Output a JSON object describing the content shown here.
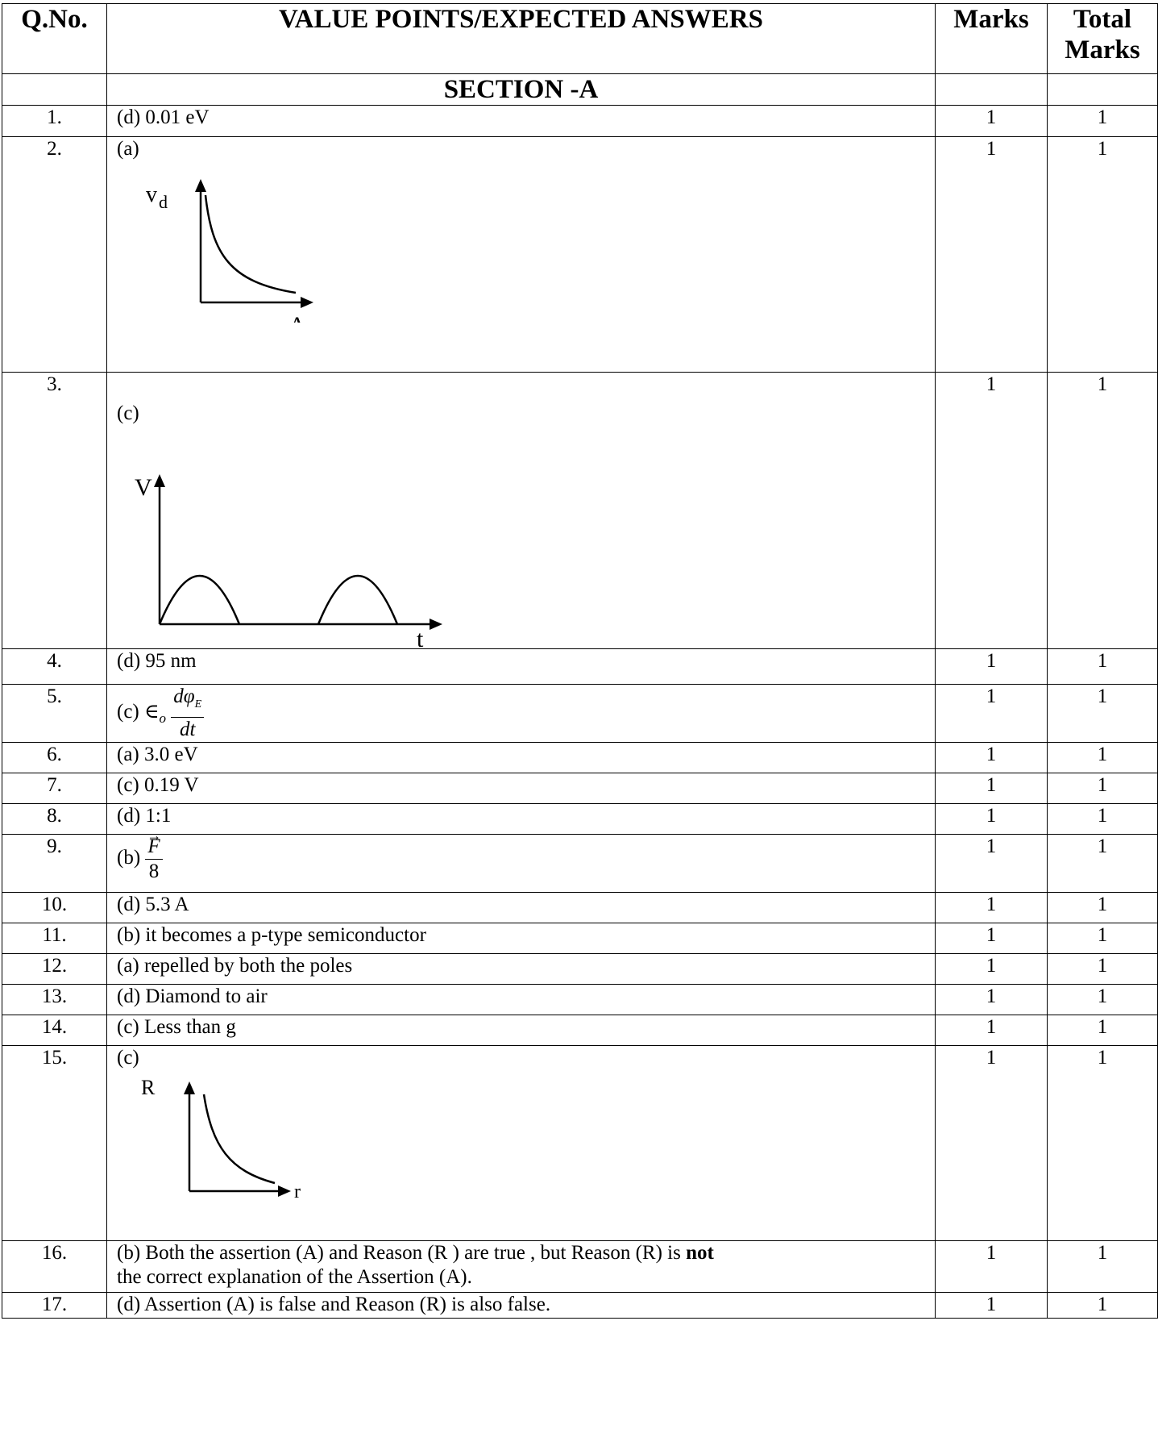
{
  "header": {
    "qno": "Q.No.",
    "answers": "VALUE POINTS/EXPECTED ANSWERS",
    "marks": "Marks",
    "total_marks": "Total Marks"
  },
  "section_title": "SECTION -A",
  "rows": [
    {
      "q": "1.",
      "answer": "(d) 0.01 eV",
      "marks": "1",
      "total": "1"
    },
    {
      "q": "2.",
      "answer": "(a)",
      "marks": "1",
      "total": "1",
      "graph": {
        "ylabel": "v",
        "ysub": "d",
        "xlabel": "A"
      }
    },
    {
      "q": "3.",
      "answer": "(c)",
      "marks": "1",
      "total": "1",
      "graph": {
        "ylabel": "V",
        "xlabel": "t"
      }
    },
    {
      "q": "4.",
      "answer": "(d) 95 nm",
      "marks": "1",
      "total": "1"
    },
    {
      "q": "5.",
      "answer": "(c) ∈",
      "answer_sub": "o",
      "frac_num": "dφ",
      "frac_num_sub": "E",
      "frac_den": "dt",
      "marks": "1",
      "total": "1"
    },
    {
      "q": "6.",
      "answer": "(a) 3.0 eV",
      "marks": "1",
      "total": "1"
    },
    {
      "q": "7.",
      "answer": "(c) 0.19 V",
      "marks": "1",
      "total": "1"
    },
    {
      "q": "8.",
      "answer": "(d) 1:1",
      "marks": "1",
      "total": "1"
    },
    {
      "q": "9.",
      "answer": "(b)",
      "frac_num": "F",
      "frac_den": "8",
      "marks": "1",
      "total": "1"
    },
    {
      "q": "10.",
      "answer": "(d) 5.3 A",
      "marks": "1",
      "total": "1"
    },
    {
      "q": "11.",
      "answer": "(b) it becomes a p-type semiconductor",
      "marks": "1",
      "total": "1"
    },
    {
      "q": "12.",
      "answer": "(a) repelled by both the poles",
      "marks": "1",
      "total": "1"
    },
    {
      "q": "13.",
      "answer": "(d) Diamond to air",
      "marks": "1",
      "total": "1"
    },
    {
      "q": "14.",
      "answer": "(c) Less than g",
      "marks": "1",
      "total": "1"
    },
    {
      "q": "15.",
      "answer": "(c)",
      "marks": "1",
      "total": "1",
      "graph": {
        "ylabel": "R",
        "xlabel": "r"
      }
    },
    {
      "q": "16.",
      "answer_part1": "(b) Both the assertion (A) and Reason (R ) are true , but Reason (R) is ",
      "answer_bold": "not",
      "answer_part2": "the correct explanation of the Assertion (A).",
      "marks": "1",
      "total": "1"
    },
    {
      "q": "17.",
      "answer": "(d) Assertion (A) is false and Reason (R) is also false.",
      "marks": "1",
      "total": "1"
    }
  ]
}
